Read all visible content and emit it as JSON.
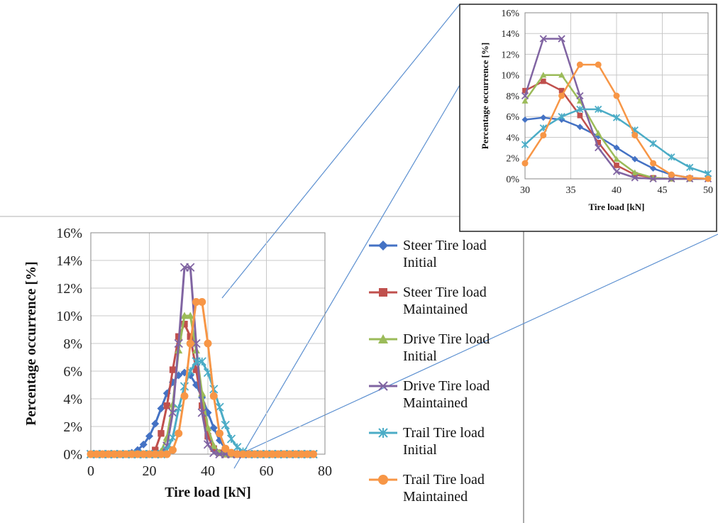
{
  "chart_data": [
    {
      "type": "line",
      "xlabel": "Tire load [kN]",
      "ylabel": "Percentage occurrence [%]",
      "xlim": [
        0,
        80
      ],
      "ylim": [
        0,
        16
      ],
      "xticks": [
        "0",
        "20",
        "40",
        "60",
        "80"
      ],
      "yticks": [
        "0%",
        "2%",
        "4%",
        "6%",
        "8%",
        "10%",
        "12%",
        "14%",
        "16%"
      ],
      "grid": true,
      "legend_position": "right",
      "x": [
        0,
        2,
        4,
        6,
        8,
        10,
        12,
        14,
        16,
        18,
        20,
        22,
        24,
        26,
        28,
        30,
        32,
        34,
        36,
        38,
        40,
        42,
        44,
        46,
        48,
        50,
        52,
        54,
        56,
        58,
        60,
        62,
        64,
        66,
        68,
        70,
        72,
        74,
        76
      ],
      "series": [
        {
          "name": "Steer Tire load Initial",
          "color": "#4472C4",
          "marker": "diamond",
          "values": [
            0,
            0,
            0,
            0,
            0,
            0,
            0,
            0.1,
            0.3,
            0.7,
            1.3,
            2.2,
            3.3,
            4.4,
            5.2,
            5.7,
            5.9,
            5.7,
            5.0,
            4.1,
            3.0,
            1.9,
            1.0,
            0.4,
            0.1,
            0,
            0,
            0,
            0,
            0,
            0,
            0,
            0,
            0,
            0,
            0,
            0,
            0,
            0
          ]
        },
        {
          "name": "Steer Tire load Maintained",
          "color": "#C0504D",
          "marker": "square",
          "values": [
            0,
            0,
            0,
            0,
            0,
            0,
            0,
            0,
            0,
            0,
            0,
            0.3,
            1.5,
            3.5,
            6.1,
            8.5,
            9.4,
            8.5,
            6.1,
            3.5,
            1.3,
            0.4,
            0.1,
            0,
            0,
            0,
            0,
            0,
            0,
            0,
            0,
            0,
            0,
            0,
            0,
            0,
            0,
            0,
            0
          ]
        },
        {
          "name": "Drive Tire load Initial",
          "color": "#9BBB59",
          "marker": "triangle",
          "values": [
            0,
            0,
            0,
            0,
            0,
            0,
            0,
            0,
            0,
            0,
            0,
            0,
            0.2,
            1.2,
            3.6,
            7.5,
            10.0,
            10.0,
            7.5,
            4.4,
            1.9,
            0.6,
            0.1,
            0,
            0,
            0,
            0,
            0,
            0,
            0,
            0,
            0,
            0,
            0,
            0,
            0,
            0,
            0,
            0
          ]
        },
        {
          "name": "Drive Tire load Maintained",
          "color": "#8064A2",
          "marker": "x",
          "values": [
            0,
            0,
            0,
            0,
            0,
            0,
            0,
            0,
            0,
            0,
            0,
            0,
            0,
            0.6,
            3.0,
            8.0,
            13.5,
            13.5,
            8.0,
            3.0,
            0.7,
            0.1,
            0,
            0,
            0,
            0,
            0,
            0,
            0,
            0,
            0,
            0,
            0,
            0,
            0,
            0,
            0,
            0,
            0
          ]
        },
        {
          "name": "Trail Tire load Initial",
          "color": "#4BACC6",
          "marker": "asterisk",
          "values": [
            0,
            0,
            0,
            0,
            0,
            0,
            0,
            0,
            0,
            0,
            0,
            0,
            0,
            0.3,
            1.2,
            3.3,
            4.9,
            6.0,
            6.7,
            6.7,
            5.9,
            4.7,
            3.4,
            2.1,
            1.1,
            0.5,
            0.2,
            0,
            0,
            0,
            0,
            0,
            0,
            0,
            0,
            0,
            0,
            0,
            0
          ]
        },
        {
          "name": "Trail Tire load Maintained",
          "color": "#F79646",
          "marker": "circle",
          "values": [
            0,
            0,
            0,
            0,
            0,
            0,
            0,
            0,
            0,
            0,
            0,
            0,
            0,
            0,
            0.3,
            1.5,
            4.2,
            8.0,
            11.0,
            11.0,
            8.0,
            4.2,
            1.5,
            0.4,
            0.1,
            0,
            0,
            0,
            0,
            0,
            0,
            0,
            0,
            0,
            0,
            0,
            0,
            0,
            0
          ]
        }
      ]
    },
    {
      "type": "line",
      "xlabel": "Tire load [kN]",
      "ylabel": "Percentage occurrence [%]",
      "xlim": [
        30,
        50
      ],
      "ylim": [
        0,
        16
      ],
      "xticks": [
        "30",
        "35",
        "40",
        "45",
        "50"
      ],
      "yticks": [
        "0%",
        "2%",
        "4%",
        "6%",
        "8%",
        "10%",
        "12%",
        "14%",
        "16%"
      ],
      "grid": true,
      "x": [
        30,
        32,
        34,
        36,
        38,
        40,
        42,
        44,
        46,
        48,
        50
      ],
      "series": [
        {
          "color": "#4472C4",
          "marker": "diamond",
          "values": [
            5.7,
            5.9,
            5.7,
            5.0,
            4.1,
            3.0,
            1.9,
            1.0,
            0.4,
            0.1,
            0
          ]
        },
        {
          "color": "#C0504D",
          "marker": "square",
          "values": [
            8.5,
            9.4,
            8.5,
            6.1,
            3.5,
            1.3,
            0.4,
            0.1,
            0,
            0,
            0
          ]
        },
        {
          "color": "#9BBB59",
          "marker": "triangle",
          "values": [
            7.5,
            10.0,
            10.0,
            7.5,
            4.4,
            1.9,
            0.6,
            0.1,
            0,
            0,
            0
          ]
        },
        {
          "color": "#8064A2",
          "marker": "x",
          "values": [
            8.0,
            13.5,
            13.5,
            8.0,
            3.0,
            0.7,
            0.1,
            0,
            0,
            0,
            0
          ]
        },
        {
          "color": "#4BACC6",
          "marker": "asterisk",
          "values": [
            3.3,
            4.9,
            6.0,
            6.7,
            6.7,
            5.9,
            4.7,
            3.4,
            2.1,
            1.1,
            0.5
          ]
        },
        {
          "color": "#F79646",
          "marker": "circle",
          "values": [
            1.5,
            4.2,
            8.0,
            11.0,
            11.0,
            8.0,
            4.2,
            1.5,
            0.4,
            0.1,
            0
          ]
        }
      ]
    }
  ],
  "legend": [
    {
      "line1": "Steer Tire load",
      "line2": "Initial"
    },
    {
      "line1": "Steer Tire load",
      "line2": "Maintained"
    },
    {
      "line1": "Drive Tire load",
      "line2": "Initial"
    },
    {
      "line1": "Drive Tire load",
      "line2": "Maintained"
    },
    {
      "line1": "Trail Tire load",
      "line2": "Initial"
    },
    {
      "line1": "Trail Tire load",
      "line2": "Maintained"
    }
  ]
}
